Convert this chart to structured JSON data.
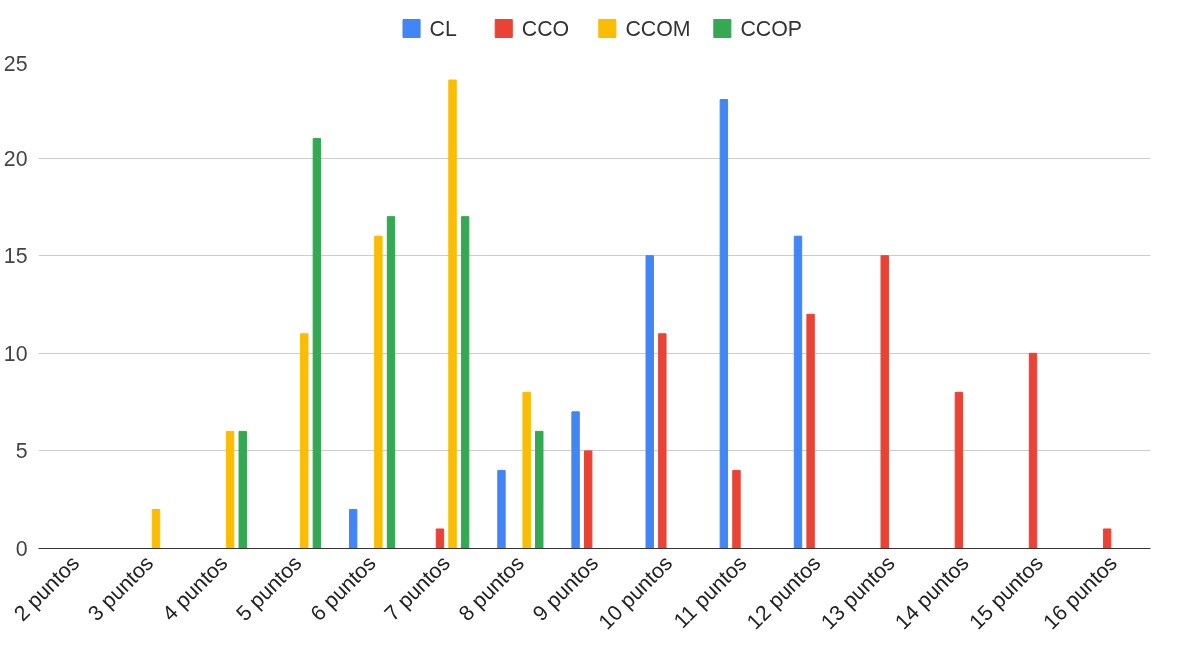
{
  "chart_data": {
    "type": "bar",
    "categories": [
      "2 puntos",
      "3 puntos",
      "4 puntos",
      "5 puntos",
      "6 puntos",
      "7 puntos",
      "8 puntos",
      "9 puntos",
      "10 puntos",
      "11 puntos",
      "12 puntos",
      "13 puntos",
      "14 puntos",
      "15 puntos",
      "16 puntos"
    ],
    "series": [
      {
        "name": "CL",
        "color": "#4285f4",
        "values": [
          0,
          0,
          0,
          0,
          2,
          0,
          4,
          7,
          15,
          23,
          16,
          0,
          0,
          0,
          0
        ]
      },
      {
        "name": "CCO",
        "color": "#ea4335",
        "values": [
          0,
          0,
          0,
          0,
          0,
          1,
          0,
          5,
          11,
          4,
          12,
          15,
          8,
          10,
          1
        ]
      },
      {
        "name": "CCOM",
        "color": "#fbbc04",
        "values": [
          0,
          2,
          6,
          11,
          16,
          24,
          8,
          0,
          0,
          0,
          0,
          0,
          0,
          0,
          0
        ]
      },
      {
        "name": "CCOP",
        "color": "#34a853",
        "values": [
          0,
          0,
          6,
          21,
          17,
          17,
          6,
          0,
          0,
          0,
          0,
          0,
          0,
          0,
          0
        ]
      }
    ],
    "ylim": [
      0,
      25
    ],
    "yticks": [
      0,
      5,
      10,
      15,
      20,
      25
    ],
    "grid": "y",
    "legend": "top"
  }
}
